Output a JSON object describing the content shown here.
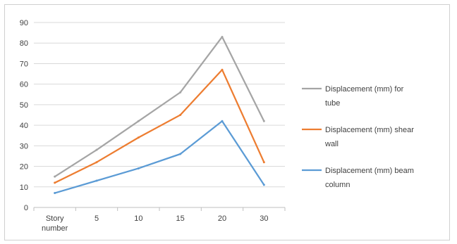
{
  "chart_data": {
    "type": "line",
    "categories": [
      "Story number",
      "5",
      "10",
      "15",
      "20",
      "30"
    ],
    "ylim": [
      0,
      90
    ],
    "yticks": [
      0,
      10,
      20,
      30,
      40,
      50,
      60,
      70,
      80,
      90
    ],
    "grid": "horizontal",
    "legend_position": "right",
    "series": [
      {
        "name": "Displacement (mm) for tube",
        "legend_lines": [
          "Displacement (mm) for",
          "tube"
        ],
        "color": "#a5a5a5",
        "values": [
          15,
          28,
          42,
          56,
          83,
          42
        ]
      },
      {
        "name": "Displacement (mm) shear wall",
        "legend_lines": [
          "Displacement (mm) shear",
          "wall"
        ],
        "color": "#ed7d31",
        "values": [
          12,
          22,
          34,
          45,
          67,
          22
        ]
      },
      {
        "name": "Displacement (mm) beam column",
        "legend_lines": [
          "Displacement (mm) beam",
          "column"
        ],
        "color": "#5b9bd5",
        "values": [
          7,
          13,
          19,
          26,
          42,
          11
        ]
      }
    ]
  }
}
